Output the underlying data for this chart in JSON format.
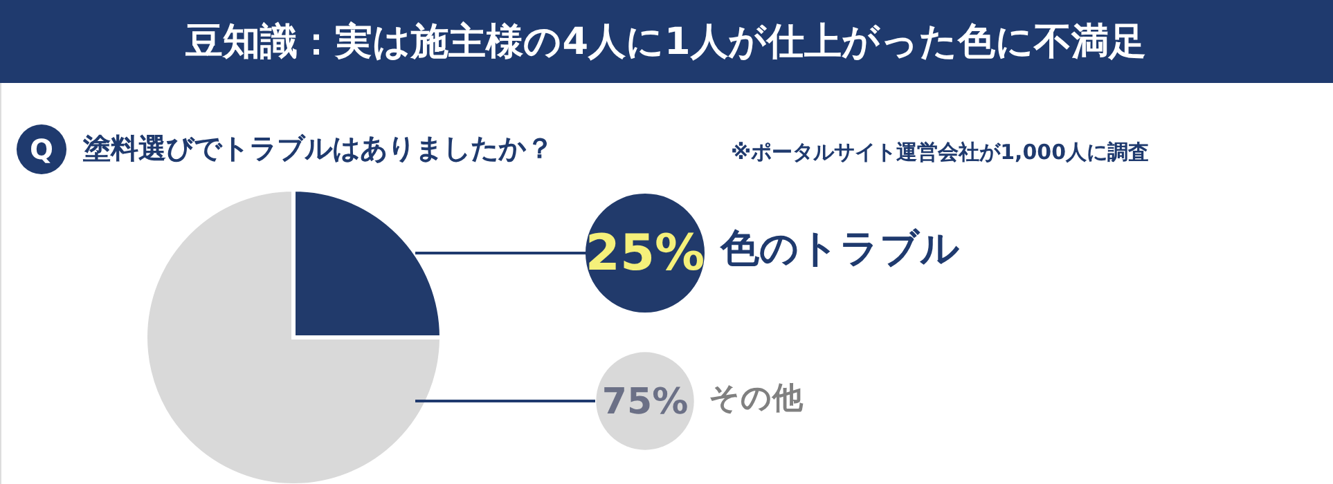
{
  "chart_data": {
    "type": "pie",
    "title": "豆知識：実は施主様の4人に1人が仕上がった色に不満足",
    "subtitle": "塗料選びでトラブルはありましたか？",
    "categories": [
      "色のトラブル",
      "その他"
    ],
    "values": [
      25,
      75
    ],
    "colors": [
      "#213a6b",
      "#d9d9d9"
    ],
    "value_labels": [
      "25%",
      "75%"
    ],
    "annotations": [
      "Q",
      "※ポータルサイト運営会社が1,000人に調査"
    ]
  }
}
